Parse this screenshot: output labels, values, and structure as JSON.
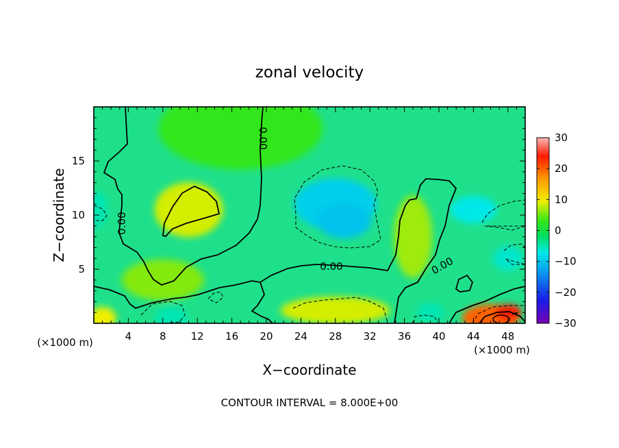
{
  "chart_data": {
    "type": "heatmap",
    "title": "zonal velocity",
    "xlabel": "X−coordinate",
    "ylabel": "Z−coordinate",
    "x_unit_left": "(×1000 m)",
    "x_unit_right": "(×1000 m)",
    "xlim": [
      0,
      50
    ],
    "ylim": [
      0,
      20
    ],
    "x_ticks": [
      4,
      8,
      12,
      16,
      20,
      24,
      28,
      32,
      36,
      40,
      44,
      48
    ],
    "x_tick_labels": [
      "4",
      "8",
      "12",
      "16",
      "20",
      "24",
      "28",
      "32",
      "36",
      "40",
      "44",
      "48"
    ],
    "y_ticks": [
      5,
      10,
      15
    ],
    "y_tick_labels": [
      "5",
      "10",
      "15"
    ],
    "colorbar": {
      "range": [
        -30,
        30
      ],
      "ticks": [
        30,
        20,
        10,
        0,
        -10,
        -20,
        -30
      ],
      "tick_labels": [
        "30",
        "20",
        "10",
        "0",
        "−10",
        "−20",
        "−30"
      ]
    },
    "contour_interval_text": "CONTOUR INTERVAL = 8.000E+00",
    "contour_labels": [
      "0.00",
      "0.00",
      "0.00",
      "0.00"
    ],
    "features": [
      {
        "x": 11,
        "z": 10.5,
        "value": 9
      },
      {
        "x": 28,
        "z": 11.0,
        "value": -9
      },
      {
        "x": 29,
        "z": 9.5,
        "value": -10
      },
      {
        "x": 46,
        "z": 0.5,
        "value": 20
      },
      {
        "x": 48,
        "z": 1.0,
        "value": 24
      },
      {
        "x": 28,
        "z": 1.2,
        "value": 9
      },
      {
        "x": 9,
        "z": 0.5,
        "value": -5
      },
      {
        "x": 1,
        "z": 0.5,
        "value": 10
      },
      {
        "x": 44,
        "z": 10.5,
        "value": -7
      },
      {
        "x": 48,
        "z": 6.0,
        "value": -6
      },
      {
        "x": 0.5,
        "z": 10.5,
        "value": -5
      },
      {
        "x": 39,
        "z": 1.0,
        "value": -5
      },
      {
        "x": 17,
        "z": 18.0,
        "value": 3
      },
      {
        "x": 8,
        "z": 4.0,
        "value": 6
      },
      {
        "x": 37,
        "z": 8.0,
        "value": 7
      }
    ]
  }
}
